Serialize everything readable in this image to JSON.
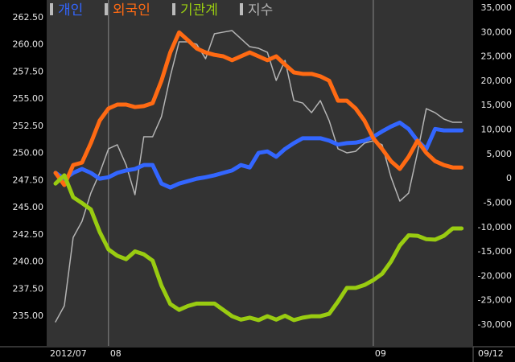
{
  "chart_data": {
    "type": "line",
    "categories": [
      "2012/07",
      null,
      null,
      null,
      null,
      null,
      "08",
      null,
      null,
      null,
      null,
      null,
      null,
      null,
      null,
      null,
      null,
      null,
      null,
      null,
      null,
      null,
      null,
      null,
      null,
      null,
      null,
      null,
      null,
      null,
      null,
      null,
      null,
      null,
      null,
      null,
      "09",
      null,
      null,
      null,
      null,
      null,
      null,
      null,
      null,
      null,
      "09/12"
    ],
    "series": [
      {
        "name": "개인",
        "color": "#3366ff",
        "axis": "y2",
        "values": [
          1200,
          0,
          1200,
          2000,
          1200,
          0,
          300,
          1200,
          1700,
          2000,
          2800,
          2800,
          -1000,
          -1800,
          -1000,
          -500,
          0,
          300,
          700,
          1200,
          1700,
          2800,
          2300,
          5300,
          5600,
          4500,
          6100,
          7300,
          8300,
          8300,
          8300,
          7800,
          7000,
          7300,
          7400,
          7800,
          8600,
          9700,
          10700,
          11500,
          10200,
          7800,
          6100,
          10200,
          9900,
          9900,
          9900
        ]
      },
      {
        "name": "외국인",
        "color": "#ff6a13",
        "axis": "y2",
        "values": [
          1200,
          -1300,
          2800,
          3300,
          7300,
          11900,
          14400,
          15200,
          15200,
          14700,
          14900,
          15500,
          20100,
          25900,
          30000,
          28400,
          26700,
          25900,
          25400,
          25100,
          24300,
          25100,
          25900,
          25100,
          24300,
          25100,
          23400,
          21800,
          21500,
          21500,
          21000,
          20100,
          16000,
          16000,
          14400,
          11900,
          8300,
          6100,
          3600,
          2000,
          4500,
          7800,
          5300,
          3600,
          2800,
          2300,
          2300
        ]
      },
      {
        "name": "기관계",
        "color": "#99cc11",
        "axis": "y2",
        "values": [
          -1000,
          700,
          -3800,
          -5000,
          -6300,
          -10900,
          -14500,
          -15800,
          -16500,
          -14900,
          -15500,
          -16800,
          -21900,
          -25700,
          -26900,
          -26100,
          -25600,
          -25600,
          -25600,
          -26900,
          -28200,
          -28900,
          -28500,
          -29000,
          -28200,
          -28900,
          -28100,
          -29000,
          -28500,
          -28200,
          -28200,
          -27700,
          -25200,
          -22400,
          -22400,
          -21800,
          -20800,
          -19500,
          -17000,
          -13700,
          -11600,
          -11700,
          -12400,
          -12500,
          -11700,
          -10200,
          -10200
        ]
      },
      {
        "name": "지수",
        "color": "#b4b4b4",
        "values": [
          234.48,
          235.96,
          242.26,
          243.74,
          246.34,
          248.19,
          250.42,
          250.79,
          248.93,
          246.19,
          251.53,
          251.53,
          253.38,
          257.09,
          260.28,
          260.28,
          260.05,
          258.72,
          261.02,
          261.17,
          261.31,
          260.57,
          259.83,
          259.68,
          259.31,
          256.72,
          258.57,
          254.86,
          254.64,
          253.75,
          254.86,
          253.01,
          250.42,
          250.05,
          250.19,
          250.94,
          251.16,
          250.79,
          247.82,
          245.6,
          246.34,
          250.05,
          254.12,
          253.75,
          253.16,
          252.86,
          252.86
        ]
      }
    ],
    "ylim": [
      232.26,
      264.13
    ],
    "yticks": [
      {
        "value": 235,
        "label": "235.00"
      },
      {
        "value": 237.5,
        "label": "237.50"
      },
      {
        "value": 240,
        "label": "240.00"
      },
      {
        "value": 242.5,
        "label": "242.50"
      },
      {
        "value": 245,
        "label": "245.00"
      },
      {
        "value": 247.5,
        "label": "247.50"
      },
      {
        "value": 250,
        "label": "250.00"
      },
      {
        "value": 252.5,
        "label": "252.50"
      },
      {
        "value": 255,
        "label": "255.00"
      },
      {
        "value": 257.5,
        "label": "257.50"
      },
      {
        "value": 260,
        "label": "260.00"
      },
      {
        "value": 262.5,
        "label": "262.50"
      }
    ],
    "y2lim": [
      -34290,
      36650
    ],
    "y2ticks": [
      {
        "value": -30000,
        "label": "-30,000"
      },
      {
        "value": -25000,
        "label": "-25,000"
      },
      {
        "value": -20000,
        "label": "-20,000"
      },
      {
        "value": -15000,
        "label": "-15,000"
      },
      {
        "value": -10000,
        "label": "-10,000"
      },
      {
        "value": -5000,
        "label": "-5,000"
      },
      0,
      {
        "value": 5000,
        "label": "5,000"
      },
      {
        "value": 10000,
        "label": "10,000"
      },
      {
        "value": 15000,
        "label": "15,000"
      },
      {
        "value": 20000,
        "label": "20,000"
      },
      {
        "value": 25000,
        "label": "25,000"
      },
      {
        "value": 30000,
        "label": "30,000"
      },
      {
        "value": 35000,
        "label": "35,000"
      }
    ]
  }
}
